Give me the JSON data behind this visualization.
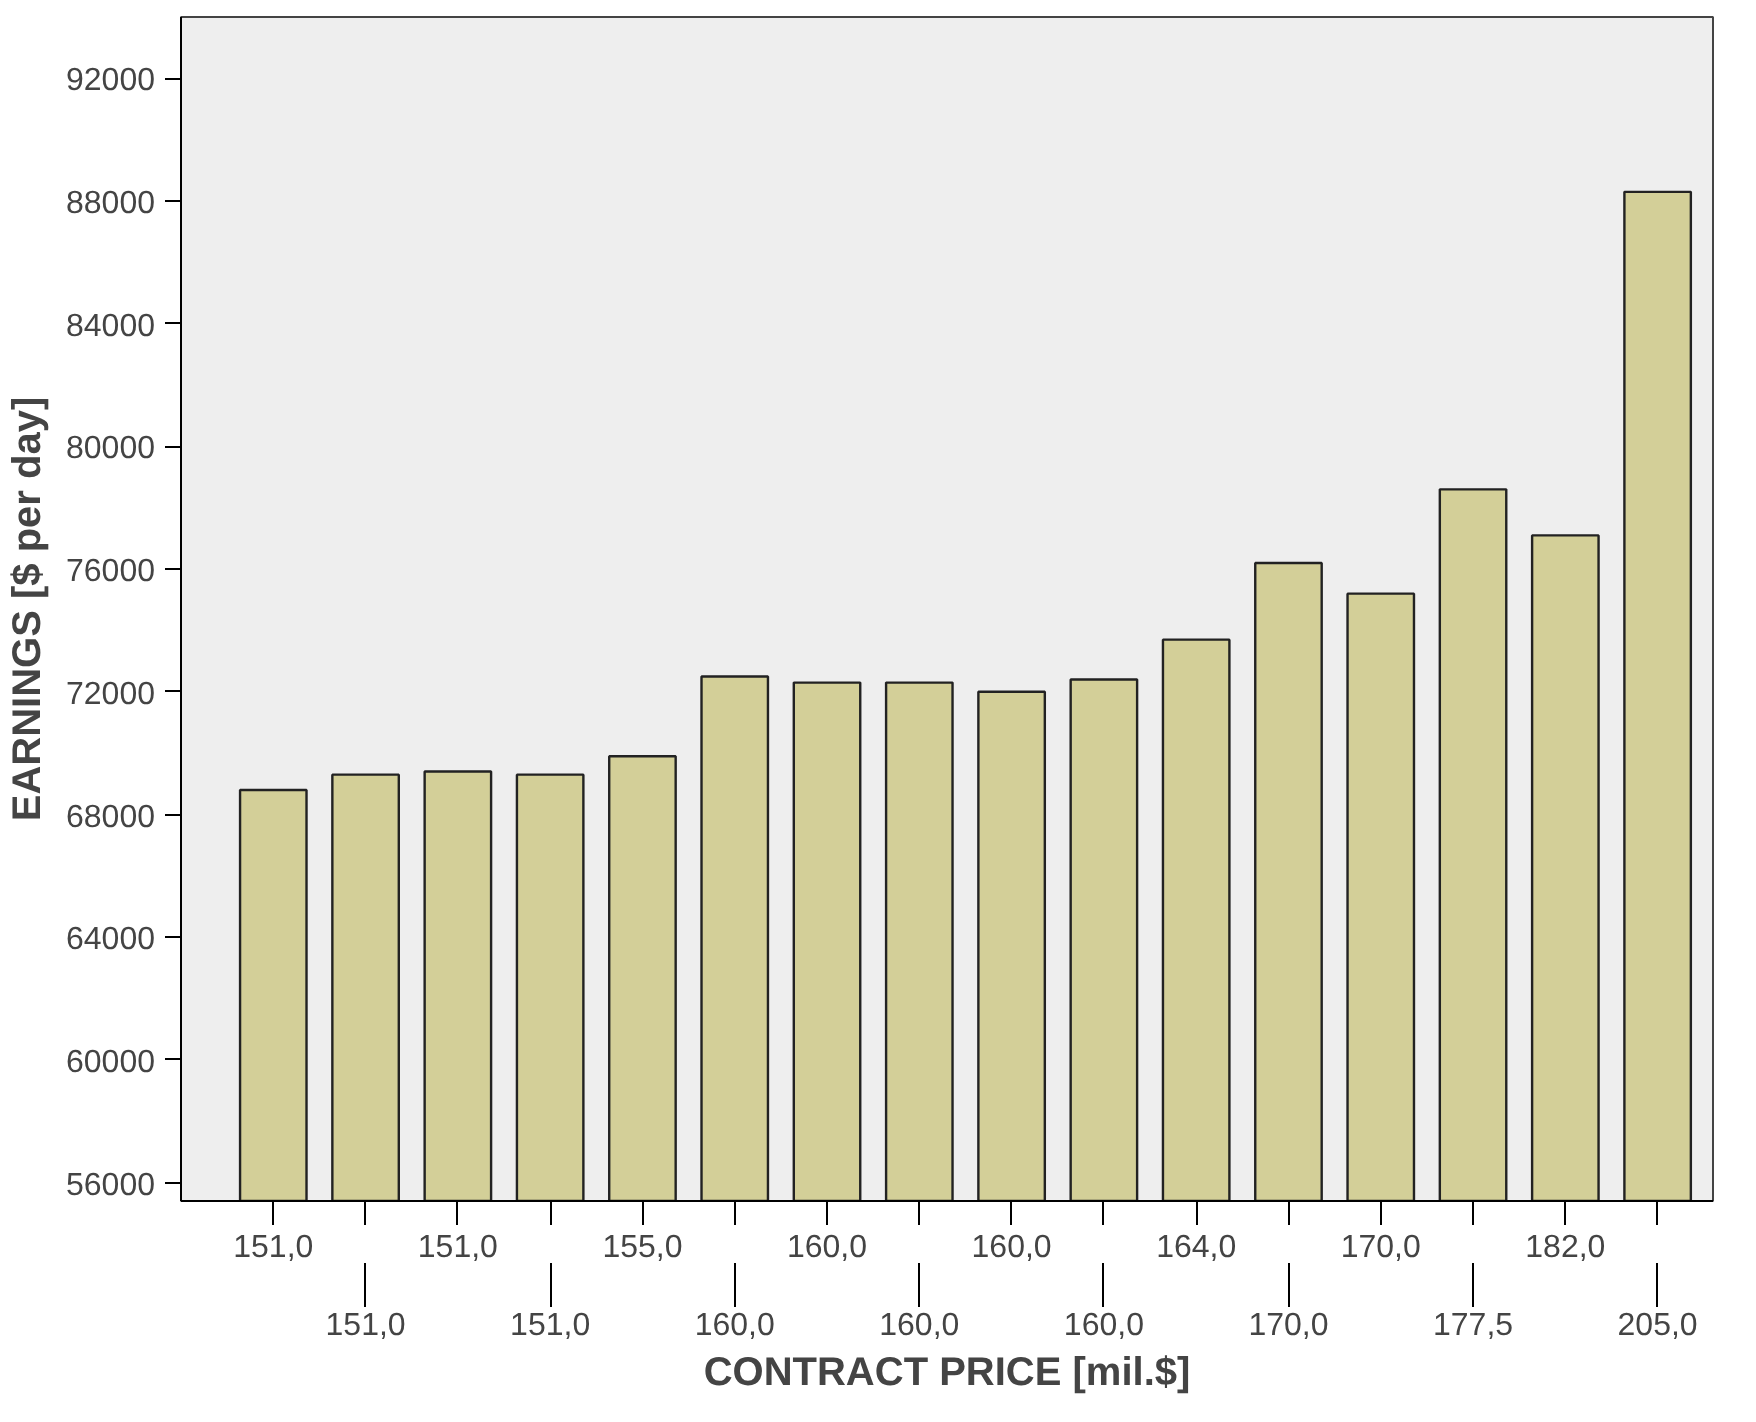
{
  "chart_data": {
    "type": "bar",
    "xlabel": "CONTRACT PRICE [mil.$]",
    "ylabel": "EARNINGS [$ per day]",
    "categories": [
      "151,0",
      "151,0",
      "151,0",
      "151,0",
      "155,0",
      "160,0",
      "160,0",
      "160,0",
      "160,0",
      "160,0",
      "164,0",
      "170,0",
      "170,0",
      "177,5",
      "182,0",
      "205,0"
    ],
    "values": [
      68800,
      69300,
      69400,
      69300,
      69900,
      72500,
      72300,
      72300,
      72000,
      72400,
      73700,
      76200,
      75200,
      78600,
      77100,
      88300
    ],
    "color": "#d3cf98",
    "ylim": [
      55400,
      94000
    ],
    "yticks": [
      56000,
      60000,
      64000,
      68000,
      72000,
      76000,
      80000,
      84000,
      88000,
      92000
    ],
    "grid": false
  }
}
